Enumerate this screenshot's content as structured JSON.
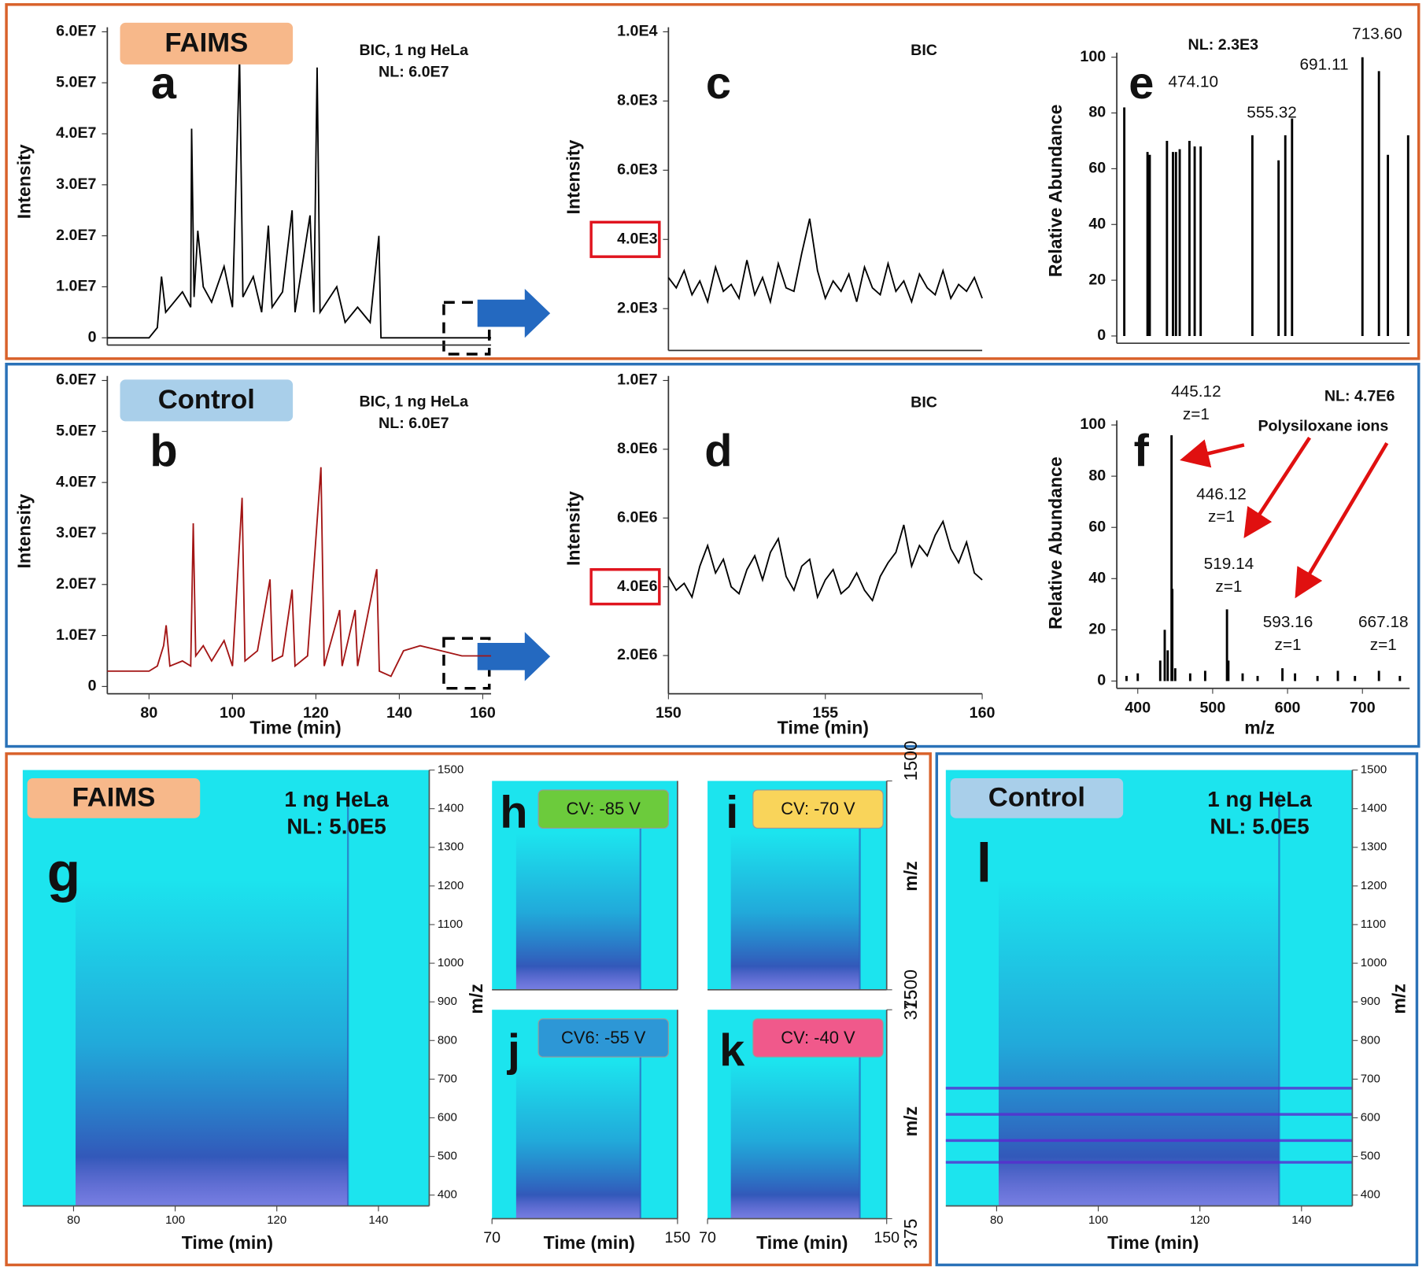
{
  "chart_data": [
    {
      "type": "line",
      "panel": "a",
      "tag": "FAIMS",
      "tag_color": "#f7b88a",
      "annotation": [
        "BIC, 1 ng HeLa",
        "NL: 6.0E7"
      ],
      "ylabel": "Intensity",
      "color": "#000000",
      "xlim": [
        70,
        162
      ],
      "ylim": [
        0,
        60000000
      ],
      "yticks": [
        0,
        {
          "value": 10000000,
          "label": "1.0E7"
        },
        {
          "value": 20000000,
          "label": "2.0E7"
        },
        {
          "value": 30000000,
          "label": "3.0E7"
        },
        {
          "value": 40000000,
          "label": "4.0E7"
        },
        {
          "value": 50000000,
          "label": "5.0E7"
        },
        {
          "value": 60000000,
          "label": "6.0E7"
        }
      ],
      "x": [
        70,
        80,
        82,
        83,
        84,
        86,
        88,
        90,
        90.2,
        90.8,
        91.7,
        93,
        95,
        98,
        100,
        101.7,
        102.5,
        105,
        107,
        108.6,
        109.5,
        112,
        114.3,
        115,
        118.6,
        119.5,
        120.3,
        121,
        125,
        127,
        130,
        133,
        135.1,
        135.6,
        162
      ],
      "values": [
        0,
        0,
        2000000,
        12000000,
        5000000,
        7000000,
        9000000,
        6000000,
        41000000,
        8000000,
        21000000,
        10000000,
        7000000,
        14000000,
        6000000,
        55000000,
        8000000,
        12000000,
        5000000,
        22000000,
        6000000,
        9000000,
        25000000,
        5000000,
        24000000,
        5000000,
        53000000,
        5000000,
        10000000,
        3000000,
        6000000,
        3000000,
        20000000,
        0,
        0
      ]
    },
    {
      "type": "line",
      "panel": "b",
      "tag": "Control",
      "tag_color": "#a9cfea",
      "annotation": [
        "BIC, 1 ng HeLa",
        "NL: 6.0E7"
      ],
      "ylabel": "Intensity",
      "xlabel": "Time (min)",
      "color": "#a31515",
      "xlim": [
        70,
        162
      ],
      "ylim": [
        0,
        60000000
      ],
      "xticks": [
        80,
        100,
        120,
        140,
        160
      ],
      "yticks": [
        0,
        {
          "value": 10000000,
          "label": "1.0E7"
        },
        {
          "value": 20000000,
          "label": "2.0E7"
        },
        {
          "value": 30000000,
          "label": "3.0E7"
        },
        {
          "value": 40000000,
          "label": "4.0E7"
        },
        {
          "value": 50000000,
          "label": "5.0E7"
        },
        {
          "value": 60000000,
          "label": "6.0E7"
        }
      ],
      "x": [
        70,
        80,
        82,
        83.5,
        84.1,
        85,
        88,
        90,
        90.6,
        91.2,
        93,
        95,
        98,
        100,
        102.3,
        103,
        106,
        109,
        109.6,
        112,
        114.3,
        115,
        118,
        121.2,
        122,
        125.7,
        126.3,
        129.4,
        130,
        134.6,
        135.2,
        138,
        141,
        145,
        150,
        155,
        162
      ],
      "values": [
        3000000,
        3000000,
        4000000,
        8000000,
        12000000,
        4000000,
        5000000,
        4000000,
        32000000,
        6000000,
        8000000,
        5000000,
        9000000,
        4000000,
        37000000,
        5000000,
        7000000,
        21000000,
        5000000,
        6000000,
        19000000,
        4000000,
        6000000,
        43000000,
        4000000,
        15000000,
        4000000,
        15000000,
        4000000,
        23000000,
        3000000,
        2000000,
        7000000,
        8000000,
        7000000,
        6000000,
        6000000
      ]
    },
    {
      "type": "line",
      "panel": "c",
      "title": "BIC",
      "ylabel": "Intensity",
      "color": "#000000",
      "xlim": [
        150,
        160
      ],
      "ylim": [
        1000,
        10000
      ],
      "yticks": [
        {
          "value": 2000,
          "label": "2.0E3"
        },
        {
          "value": 4000,
          "label": "4.0E3"
        },
        {
          "value": 6000,
          "label": "6.0E3"
        },
        {
          "value": 8000,
          "label": "8.0E3"
        },
        {
          "value": 10000,
          "label": "1.0E4"
        }
      ],
      "x": [
        150,
        150.25,
        150.5,
        150.75,
        151,
        151.25,
        151.5,
        151.75,
        152,
        152.25,
        152.5,
        152.75,
        153,
        153.25,
        153.5,
        153.75,
        154,
        154.25,
        154.5,
        154.75,
        155,
        155.25,
        155.5,
        155.75,
        156,
        156.25,
        156.5,
        156.75,
        157,
        157.25,
        157.5,
        157.75,
        158,
        158.25,
        158.5,
        158.75,
        159,
        159.25,
        159.5,
        159.75,
        160
      ],
      "values": [
        2900,
        2600,
        3100,
        2400,
        2800,
        2200,
        3200,
        2500,
        2700,
        2300,
        3400,
        2400,
        2900,
        2200,
        3300,
        2600,
        2500,
        3600,
        4600,
        3100,
        2300,
        2800,
        2500,
        3000,
        2200,
        3200,
        2600,
        2400,
        3300,
        2500,
        2800,
        2200,
        3000,
        2600,
        2400,
        3100,
        2300,
        2700,
        2500,
        2900,
        2300
      ]
    },
    {
      "type": "line",
      "panel": "d",
      "title": "BIC",
      "ylabel": "Intensity",
      "xlabel": "Time (min)",
      "color": "#000000",
      "xlim": [
        150,
        160
      ],
      "ylim": [
        1100000,
        10000000
      ],
      "xticks": [
        150,
        155,
        160
      ],
      "yticks": [
        {
          "value": 2000000,
          "label": "2.0E6"
        },
        {
          "value": 4000000,
          "label": "4.0E6"
        },
        {
          "value": 6000000,
          "label": "6.0E6"
        },
        {
          "value": 8000000,
          "label": "8.0E6"
        },
        {
          "value": 10000000,
          "label": "1.0E7"
        }
      ],
      "x": [
        150,
        150.25,
        150.5,
        150.75,
        151,
        151.25,
        151.5,
        151.75,
        152,
        152.25,
        152.5,
        152.75,
        153,
        153.25,
        153.5,
        153.75,
        154,
        154.25,
        154.5,
        154.75,
        155,
        155.25,
        155.5,
        155.75,
        156,
        156.25,
        156.5,
        156.75,
        157,
        157.25,
        157.5,
        157.75,
        158,
        158.25,
        158.5,
        158.75,
        159,
        159.25,
        159.5,
        159.75,
        160
      ],
      "values": [
        4300000,
        3900000,
        4100000,
        3700000,
        4600000,
        5200000,
        4400000,
        4800000,
        4000000,
        3800000,
        4500000,
        4900000,
        4200000,
        5000000,
        5400000,
        4300000,
        3900000,
        4600000,
        4800000,
        3700000,
        4200000,
        4500000,
        3800000,
        4000000,
        4400000,
        3900000,
        3600000,
        4300000,
        4700000,
        5000000,
        5800000,
        4600000,
        5200000,
        4900000,
        5500000,
        5900000,
        5100000,
        4700000,
        5300000,
        4400000,
        4200000
      ]
    },
    {
      "type": "stick",
      "panel": "e",
      "title": "NL: 2.3E3",
      "ylabel": "Relative Abundance",
      "color": "#000000",
      "xlim": [
        372,
        763
      ],
      "ylim": [
        0,
        100
      ],
      "yticks": [
        0,
        20,
        40,
        60,
        80,
        100
      ],
      "x": [
        382,
        413,
        416,
        439,
        447,
        451,
        456,
        469,
        476,
        484,
        553,
        588,
        597,
        606,
        700,
        722,
        734,
        761
      ],
      "values": [
        82,
        66,
        65,
        70,
        66,
        66,
        67,
        70,
        68,
        68,
        72,
        63,
        72,
        78,
        100,
        95,
        65,
        72
      ],
      "peak_labels": [
        {
          "value": 474.1,
          "label": "474.10"
        },
        {
          "value": 555.32,
          "label": "555.32"
        },
        {
          "value": 691.11,
          "label": "691.11"
        },
        {
          "value": 713.6,
          "label": "713.60"
        }
      ]
    },
    {
      "type": "stick",
      "panel": "f",
      "title": "NL: 4.7E6",
      "ylabel": "Relative Abundance",
      "xlabel": "m/z",
      "annotation": [
        "Polysiloxane ions"
      ],
      "color": "#000000",
      "xlim": [
        372,
        763
      ],
      "ylim": [
        0,
        100
      ],
      "yticks": [
        0,
        20,
        40,
        60,
        80,
        100
      ],
      "xticks": [
        400,
        500,
        600,
        700
      ],
      "x": [
        385,
        400,
        430,
        436,
        440,
        445.12,
        446.12,
        450,
        470,
        490,
        519.14,
        521,
        540,
        560,
        593.16,
        610,
        640,
        667.18,
        690,
        722,
        750
      ],
      "values": [
        2,
        3,
        8,
        20,
        12,
        96,
        36,
        5,
        3,
        4,
        28,
        8,
        3,
        2,
        5,
        3,
        2,
        4,
        2,
        4,
        2
      ],
      "peak_labels": [
        {
          "value": 445.12,
          "label": "445.12",
          "charge": "z=1"
        },
        {
          "value": 446.12,
          "label": "446.12",
          "charge": "z=1"
        },
        {
          "value": 519.14,
          "label": "519.14",
          "charge": "z=1"
        },
        {
          "value": 593.16,
          "label": "593.16",
          "charge": "z=1"
        },
        {
          "value": 667.18,
          "label": "667.18",
          "charge": "z=1"
        }
      ]
    },
    {
      "type": "heatmap",
      "panel": "g",
      "tag": "FAIMS",
      "tag_color": "#f7b88a",
      "annotation": [
        "1 ng HeLa",
        "NL: 5.0E5"
      ],
      "ylabel": "m/z",
      "xlabel": "Time (min)",
      "xlim": [
        70,
        150
      ],
      "ylim": [
        372,
        1500
      ],
      "xticks": [
        80,
        100,
        120,
        140
      ],
      "yticks": [
        400,
        500,
        600,
        700,
        800,
        900,
        1000,
        1100,
        1200,
        1300,
        1400,
        1500
      ]
    },
    {
      "type": "heatmap",
      "panel": "h",
      "tag": "CV: -85 V",
      "tag_color": "#6ccb3c",
      "xlim": [
        70,
        150
      ],
      "ylim": [
        375,
        1500
      ]
    },
    {
      "type": "heatmap",
      "panel": "i",
      "tag": "CV: -70 V",
      "tag_color": "#f9d45a",
      "ylabel": "m/z",
      "xlim": [
        70,
        150
      ],
      "ylim": [
        375,
        1500
      ],
      "yticks": [
        375,
        1500
      ]
    },
    {
      "type": "heatmap",
      "panel": "j",
      "tag": "CV6: -55 V",
      "tag_color": "#2d97d6",
      "xlabel": "Time (min)",
      "xlim": [
        70,
        150
      ],
      "ylim": [
        375,
        1500
      ],
      "xticks": [
        70,
        150
      ]
    },
    {
      "type": "heatmap",
      "panel": "k",
      "tag": "CV: -40 V",
      "tag_color": "#f0598b",
      "ylabel": "m/z",
      "xlabel": "Time (min)",
      "xlim": [
        70,
        150
      ],
      "ylim": [
        375,
        1500
      ],
      "xticks": [
        70,
        150
      ],
      "yticks": [
        375,
        1500
      ]
    },
    {
      "type": "heatmap",
      "panel": "l",
      "tag": "Control",
      "tag_color": "#a9cfea",
      "annotation": [
        "1 ng HeLa",
        "NL: 5.0E5"
      ],
      "ylabel": "m/z",
      "xlabel": "Time (min)",
      "xlim": [
        70,
        150
      ],
      "ylim": [
        372,
        1500
      ],
      "xticks": [
        80,
        100,
        120,
        140
      ],
      "yticks": [
        400,
        500,
        600,
        700,
        800,
        900,
        1000,
        1100,
        1200,
        1300,
        1400,
        1500
      ]
    }
  ]
}
